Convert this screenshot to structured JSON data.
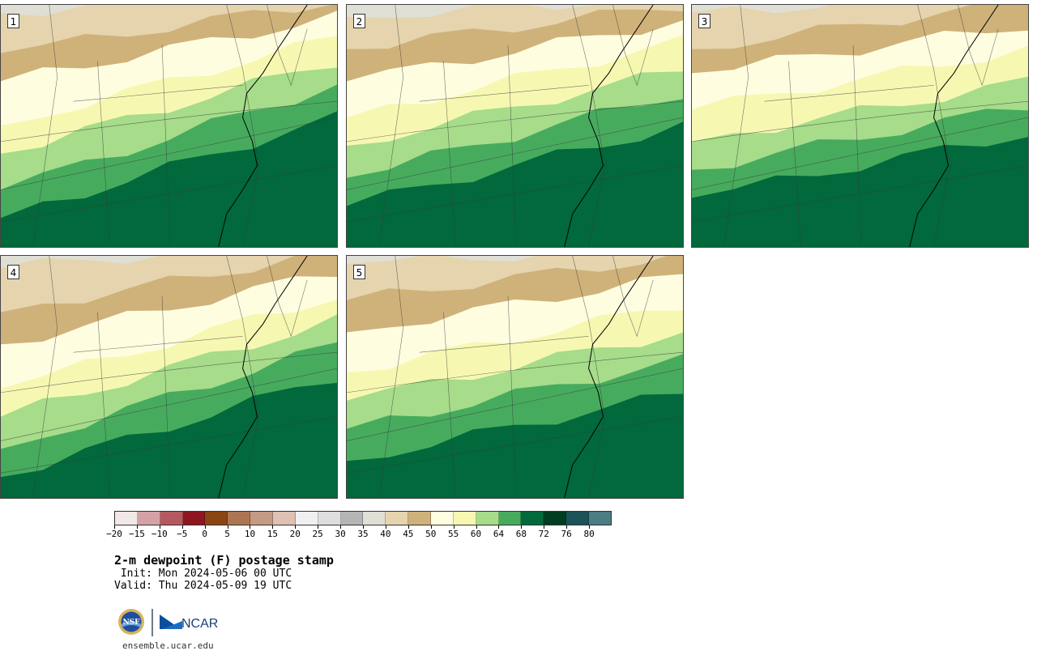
{
  "panels": [
    {
      "label": "1"
    },
    {
      "label": "2"
    },
    {
      "label": "3"
    },
    {
      "label": "4"
    },
    {
      "label": "5"
    }
  ],
  "colorbar": {
    "colors": [
      "#f3e8e8",
      "#d4a2a6",
      "#b5595f",
      "#8e1620",
      "#8b4513",
      "#ad7552",
      "#c39a82",
      "#ddc1b3",
      "#f0f0f0",
      "#dedede",
      "#b5b5b5",
      "#dfdfd5",
      "#e5d4ae",
      "#cfb27a",
      "#fffde0",
      "#f6f8b2",
      "#a6dc8a",
      "#47ab5e",
      "#01693c",
      "#003e22",
      "#1b5359",
      "#4b7d84"
    ],
    "ticks": [
      "−20",
      "−15",
      "−10",
      "−5",
      "0",
      "5",
      "10",
      "15",
      "20",
      "25",
      "30",
      "35",
      "40",
      "45",
      "50",
      "55",
      "60",
      "64",
      "68",
      "72",
      "76",
      "80"
    ]
  },
  "title": "2-m dewpoint (F) postage stamp",
  "init": " Init: Mon 2024-05-06 00 UTC",
  "valid": "Valid: Thu 2024-05-09 19 UTC",
  "logos": {
    "nsf": "NSF",
    "ncar": "NCAR"
  },
  "site": "ensemble.ucar.edu"
}
